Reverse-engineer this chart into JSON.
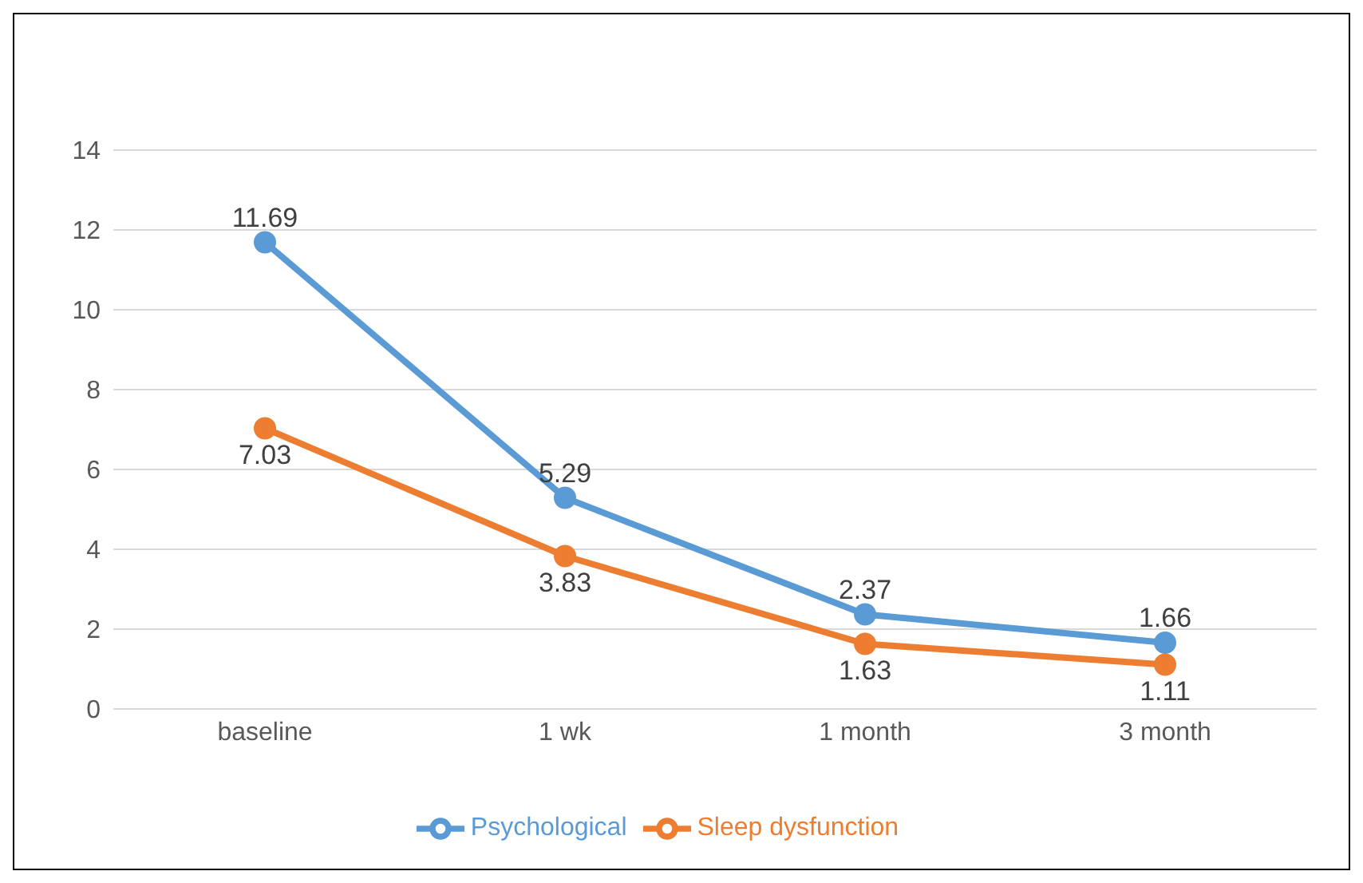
{
  "chart_data": {
    "type": "line",
    "categories": [
      "baseline",
      "1 wk",
      "1 month",
      "3 month"
    ],
    "series": [
      {
        "name": "Psychological",
        "color": "#5b9bd5",
        "values": [
          11.69,
          5.29,
          2.37,
          1.66
        ]
      },
      {
        "name": "Sleep dysfunction",
        "color": "#ed7d31",
        "values": [
          7.03,
          3.83,
          1.63,
          1.11
        ]
      }
    ],
    "ylim": [
      0,
      14
    ],
    "yticks": [
      0,
      2,
      4,
      6,
      8,
      10,
      12,
      14
    ],
    "grid": "y",
    "legend": "bottom",
    "marker": "circle",
    "line_style": "solid",
    "data_labels": true
  }
}
